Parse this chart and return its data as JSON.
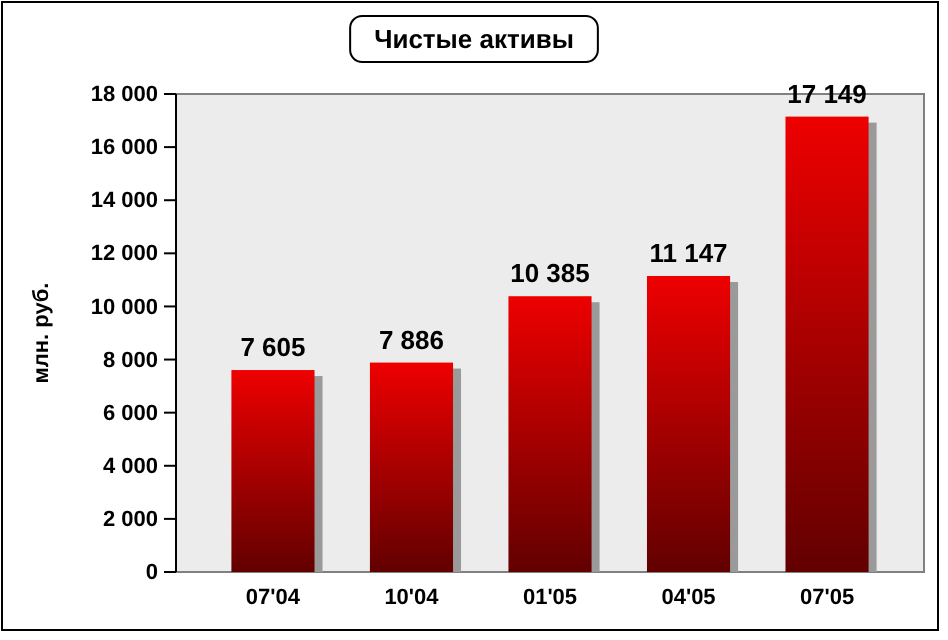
{
  "chart_data": {
    "type": "bar",
    "title": "Чистые активы",
    "ylabel": "млн. руб.",
    "categories": [
      "07'04",
      "10'04",
      "01'05",
      "04'05",
      "07'05"
    ],
    "values": [
      7605,
      7886,
      10385,
      11147,
      17149
    ],
    "value_labels": [
      "7 605",
      "7 886",
      "10 385",
      "11 147",
      "17 149"
    ],
    "color": "#ee0000",
    "ylim": [
      0,
      18000
    ],
    "yticks": [
      0,
      {
        "value": 2000,
        "label": "2 000"
      },
      {
        "value": 4000,
        "label": "4 000"
      },
      {
        "value": 6000,
        "label": "6 000"
      },
      {
        "value": 8000,
        "label": "8 000"
      },
      {
        "value": 10000,
        "label": "10 000"
      },
      {
        "value": 12000,
        "label": "12 000"
      },
      {
        "value": 14000,
        "label": "14 000"
      },
      {
        "value": 16000,
        "label": "16 000"
      },
      {
        "value": 18000,
        "label": "18 000"
      }
    ],
    "grid": false
  }
}
